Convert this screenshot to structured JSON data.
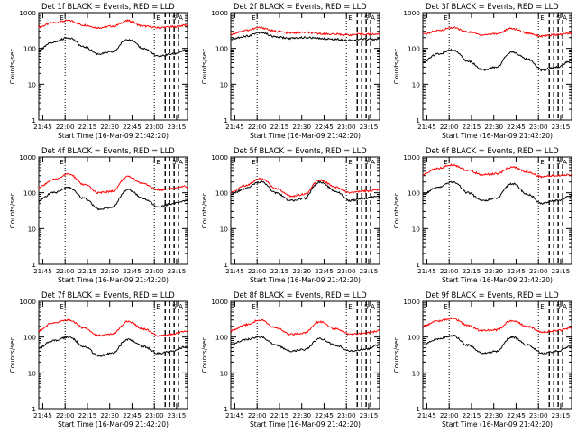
{
  "colors": {
    "events": "#000000",
    "lld": "#ff0000",
    "axes": "#000000",
    "background": "#ffffff"
  },
  "xticks": [
    "21:45",
    "22:00",
    "22:15",
    "22:30",
    "22:45",
    "23:00",
    "23:15"
  ],
  "yticks": [
    "1",
    "10",
    "100",
    "1000"
  ],
  "ylabel": "Counts/sec",
  "xlabel": "Start Time (16-Mar-09 21:42:20)",
  "marker_labels": {
    "e": "E",
    "s": "S",
    "a": "A"
  },
  "chart_data": [
    {
      "type": "line",
      "title": "Det 1f BLACK = Events, RED = LLD",
      "yscale": "log",
      "ylim": [
        1,
        1000
      ],
      "xlim_minutes": [
        0,
        100
      ],
      "dotted_x": [
        17.7,
        77.7
      ],
      "dashed_x": [
        85,
        88,
        91,
        94
      ],
      "series": [
        {
          "name": "RED = LLD",
          "x": [
            0,
            10,
            20,
            30,
            40,
            50,
            60,
            70,
            80,
            90,
            100
          ],
          "values": [
            400,
            520,
            600,
            450,
            380,
            420,
            590,
            420,
            380,
            400,
            450
          ]
        },
        {
          "name": "BLACK = Events",
          "x": [
            0,
            10,
            20,
            30,
            40,
            50,
            60,
            70,
            80,
            90,
            100
          ],
          "values": [
            90,
            150,
            200,
            110,
            70,
            80,
            180,
            100,
            60,
            70,
            90
          ]
        }
      ]
    },
    {
      "type": "line",
      "title": "Det 2f BLACK = Events, RED = LLD",
      "yscale": "log",
      "ylim": [
        1,
        1000
      ],
      "xlim_minutes": [
        0,
        100
      ],
      "dotted_x": [
        17.7,
        77.7
      ],
      "dashed_x": [
        85,
        88,
        91,
        94
      ],
      "series": [
        {
          "name": "RED = LLD",
          "x": [
            0,
            10,
            20,
            30,
            40,
            50,
            60,
            70,
            80,
            90,
            100
          ],
          "values": [
            250,
            320,
            380,
            300,
            270,
            280,
            260,
            250,
            240,
            250,
            250
          ]
        },
        {
          "name": "BLACK = Events",
          "x": [
            0,
            10,
            20,
            30,
            40,
            50,
            60,
            70,
            80,
            90,
            100
          ],
          "values": [
            180,
            220,
            280,
            210,
            190,
            200,
            190,
            180,
            170,
            180,
            180
          ]
        }
      ]
    },
    {
      "type": "line",
      "title": "Det 3f BLACK = Events, RED = LLD",
      "yscale": "log",
      "ylim": [
        1,
        1000
      ],
      "xlim_minutes": [
        0,
        100
      ],
      "dotted_x": [
        17.7,
        77.7
      ],
      "dashed_x": [
        85,
        88,
        91,
        94
      ],
      "series": [
        {
          "name": "RED = LLD",
          "x": [
            0,
            10,
            20,
            30,
            40,
            50,
            60,
            70,
            80,
            90,
            100
          ],
          "values": [
            250,
            310,
            380,
            290,
            240,
            260,
            360,
            270,
            220,
            240,
            270
          ]
        },
        {
          "name": "BLACK = Events",
          "x": [
            0,
            10,
            20,
            30,
            40,
            50,
            60,
            70,
            80,
            90,
            100
          ],
          "values": [
            40,
            70,
            90,
            45,
            25,
            30,
            80,
            50,
            25,
            30,
            45
          ]
        }
      ]
    },
    {
      "type": "line",
      "title": "Det 4f BLACK = Events, RED = LLD",
      "yscale": "log",
      "ylim": [
        1,
        1000
      ],
      "xlim_minutes": [
        0,
        100
      ],
      "dotted_x": [
        17.7,
        77.7
      ],
      "dashed_x": [
        85,
        88,
        91,
        94
      ],
      "series": [
        {
          "name": "RED = LLD",
          "x": [
            0,
            10,
            20,
            30,
            40,
            50,
            60,
            70,
            80,
            90,
            100
          ],
          "values": [
            140,
            230,
            330,
            170,
            100,
            110,
            280,
            180,
            120,
            130,
            150
          ]
        },
        {
          "name": "BLACK = Events",
          "x": [
            0,
            10,
            20,
            30,
            40,
            50,
            60,
            70,
            80,
            90,
            100
          ],
          "values": [
            60,
            100,
            140,
            70,
            35,
            40,
            120,
            70,
            40,
            50,
            60
          ]
        }
      ]
    },
    {
      "type": "line",
      "title": "Det 5f BLACK = Events, RED = LLD",
      "yscale": "log",
      "ylim": [
        1,
        1000
      ],
      "xlim_minutes": [
        0,
        100
      ],
      "dotted_x": [
        17.7,
        77.7
      ],
      "dashed_x": [
        85,
        88,
        91,
        94
      ],
      "series": [
        {
          "name": "RED = LLD",
          "x": [
            0,
            10,
            20,
            30,
            40,
            50,
            60,
            70,
            80,
            90,
            100
          ],
          "values": [
            100,
            160,
            250,
            130,
            80,
            90,
            230,
            140,
            100,
            110,
            120
          ]
        },
        {
          "name": "BLACK = Events",
          "x": [
            0,
            10,
            20,
            30,
            40,
            50,
            60,
            70,
            80,
            90,
            100
          ],
          "values": [
            90,
            130,
            200,
            100,
            60,
            70,
            200,
            110,
            60,
            70,
            80
          ]
        }
      ]
    },
    {
      "type": "line",
      "title": "Det 6f BLACK = Events, RED = LLD",
      "yscale": "log",
      "ylim": [
        1,
        1000
      ],
      "xlim_minutes": [
        0,
        100
      ],
      "dotted_x": [
        17.7,
        77.7
      ],
      "dashed_x": [
        85,
        88,
        91,
        94
      ],
      "series": [
        {
          "name": "RED = LLD",
          "x": [
            0,
            10,
            20,
            30,
            40,
            50,
            60,
            70,
            80,
            90,
            100
          ],
          "values": [
            320,
            480,
            600,
            420,
            320,
            340,
            520,
            380,
            280,
            300,
            320
          ]
        },
        {
          "name": "BLACK = Events",
          "x": [
            0,
            10,
            20,
            30,
            40,
            50,
            60,
            70,
            80,
            90,
            100
          ],
          "values": [
            90,
            140,
            200,
            100,
            60,
            70,
            180,
            90,
            50,
            60,
            80
          ]
        }
      ]
    },
    {
      "type": "line",
      "title": "Det 7f BLACK = Events, RED = LLD",
      "yscale": "log",
      "ylim": [
        1,
        1000
      ],
      "xlim_minutes": [
        0,
        100
      ],
      "dotted_x": [
        17.7,
        77.7
      ],
      "dashed_x": [
        85,
        88,
        91,
        94
      ],
      "series": [
        {
          "name": "RED = LLD",
          "x": [
            0,
            10,
            20,
            30,
            40,
            50,
            60,
            70,
            80,
            90,
            100
          ],
          "values": [
            150,
            250,
            300,
            180,
            110,
            120,
            270,
            170,
            110,
            120,
            150
          ]
        },
        {
          "name": "BLACK = Events",
          "x": [
            0,
            10,
            20,
            30,
            40,
            50,
            60,
            70,
            80,
            90,
            100
          ],
          "values": [
            50,
            80,
            100,
            55,
            30,
            35,
            85,
            55,
            35,
            40,
            55
          ]
        }
      ]
    },
    {
      "type": "line",
      "title": "Det 8f BLACK = Events, RED = LLD",
      "yscale": "log",
      "ylim": [
        1,
        1000
      ],
      "xlim_minutes": [
        0,
        100
      ],
      "dotted_x": [
        17.7,
        77.7
      ],
      "dashed_x": [
        85,
        88,
        91,
        94
      ],
      "series": [
        {
          "name": "RED = LLD",
          "x": [
            0,
            10,
            20,
            30,
            40,
            50,
            60,
            70,
            80,
            90,
            100
          ],
          "values": [
            150,
            220,
            300,
            180,
            120,
            130,
            270,
            170,
            120,
            130,
            150
          ]
        },
        {
          "name": "BLACK = Events",
          "x": [
            0,
            10,
            20,
            30,
            40,
            50,
            60,
            70,
            80,
            90,
            100
          ],
          "values": [
            60,
            85,
            100,
            60,
            40,
            45,
            90,
            60,
            40,
            45,
            60
          ]
        }
      ]
    },
    {
      "type": "line",
      "title": "Det 9f BLACK = Events, RED = LLD",
      "yscale": "log",
      "ylim": [
        1,
        1000
      ],
      "xlim_minutes": [
        0,
        100
      ],
      "dotted_x": [
        17.7,
        77.7
      ],
      "dashed_x": [
        85,
        88,
        91,
        94
      ],
      "series": [
        {
          "name": "RED = LLD",
          "x": [
            0,
            10,
            20,
            30,
            40,
            50,
            60,
            70,
            80,
            90,
            100
          ],
          "values": [
            200,
            280,
            330,
            210,
            150,
            160,
            290,
            200,
            140,
            150,
            180
          ]
        },
        {
          "name": "BLACK = Events",
          "x": [
            0,
            10,
            20,
            30,
            40,
            50,
            60,
            70,
            80,
            90,
            100
          ],
          "values": [
            60,
            90,
            110,
            60,
            35,
            40,
            100,
            60,
            35,
            40,
            55
          ]
        }
      ]
    }
  ]
}
